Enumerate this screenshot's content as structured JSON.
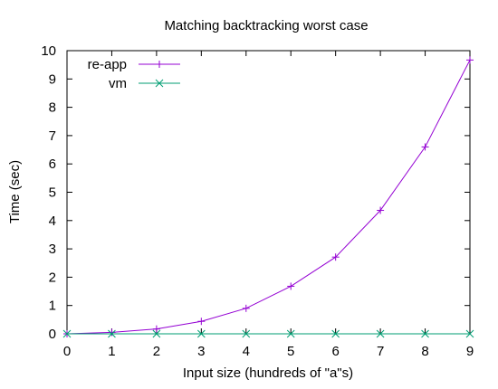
{
  "chart_data": {
    "type": "line",
    "title": "Matching backtracking worst case",
    "xlabel": "Input size (hundreds of \"a\"s)",
    "ylabel": "Time (sec)",
    "xlim": [
      0,
      9
    ],
    "ylim": [
      0,
      10
    ],
    "x_ticks": [
      "0",
      "1",
      "2",
      "3",
      "4",
      "5",
      "6",
      "7",
      "8",
      "9"
    ],
    "y_ticks": [
      "0",
      "1",
      "2",
      "3",
      "4",
      "5",
      "6",
      "7",
      "8",
      "9",
      "10"
    ],
    "grid": false,
    "legend_position": "top-left",
    "series": [
      {
        "name": "re-app",
        "color": "#9400d3",
        "marker": "plus",
        "x": [
          0,
          1,
          2,
          3,
          4,
          5,
          6,
          7,
          8,
          9
        ],
        "y": [
          0.0,
          0.05,
          0.17,
          0.44,
          0.9,
          1.68,
          2.71,
          4.36,
          6.6,
          9.67
        ]
      },
      {
        "name": "vm",
        "color": "#009e73",
        "marker": "cross",
        "x": [
          0,
          1,
          2,
          3,
          4,
          5,
          6,
          7,
          8,
          9
        ],
        "y": [
          0,
          0,
          0,
          0,
          0,
          0,
          0,
          0,
          0,
          0
        ]
      }
    ]
  }
}
